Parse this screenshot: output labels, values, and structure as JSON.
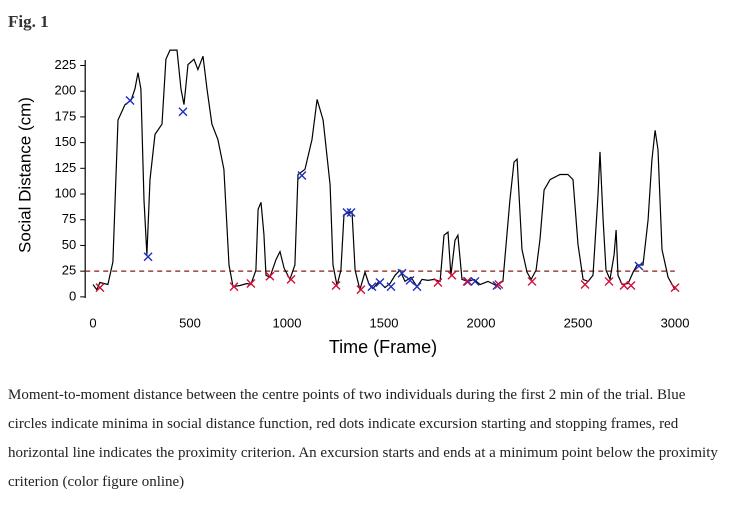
{
  "figure_label": "Fig. 1",
  "chart_data": {
    "type": "line",
    "xlabel": "Time (Frame)",
    "ylabel": "Social Distance (cm)",
    "xlim": [
      -40,
      3040
    ],
    "ylim": [
      -5,
      242
    ],
    "xticks": [
      0,
      500,
      1000,
      1500,
      2000,
      2500,
      3000
    ],
    "yticks": [
      0,
      25,
      50,
      75,
      100,
      125,
      150,
      175,
      200,
      225
    ],
    "threshold": 25,
    "threshold_color": "#8b1a1a",
    "series": [
      {
        "color": "#000000",
        "x": [
          0,
          20,
          36,
          77,
          103,
          129,
          165,
          196,
          216,
          232,
          247,
          263,
          278,
          294,
          320,
          356,
          376,
          397,
          433,
          454,
          469,
          490,
          521,
          541,
          567,
          588,
          613,
          644,
          675,
          701,
          722,
          758,
          794,
          814,
          840,
          851,
          866,
          881,
          892,
          912,
          943,
          964,
          985,
          1015,
          1041,
          1057,
          1093,
          1129,
          1155,
          1186,
          1222,
          1237,
          1258,
          1278,
          1294,
          1335,
          1351,
          1376,
          1402,
          1423,
          1443,
          1474,
          1505,
          1531,
          1557,
          1582,
          1608,
          1639,
          1670,
          1696,
          1727,
          1758,
          1789,
          1809,
          1830,
          1845,
          1866,
          1881,
          1902,
          1933,
          1964,
          1995,
          2036,
          2077,
          2113,
          2149,
          2170,
          2186,
          2211,
          2237,
          2258,
          2284,
          2304,
          2325,
          2356,
          2407,
          2448,
          2474,
          2500,
          2526,
          2552,
          2577,
          2603,
          2613,
          2629,
          2644,
          2665,
          2686,
          2696,
          2706,
          2727,
          2758,
          2784,
          2804,
          2835,
          2861,
          2881,
          2897,
          2912,
          2933,
          2964,
          3000
        ],
        "values": [
          12,
          7,
          14,
          12,
          34,
          172,
          187,
          191,
          202,
          218,
          202,
          94,
          41,
          114,
          158,
          168,
          231,
          240,
          240,
          202,
          187,
          226,
          231,
          221,
          234,
          202,
          168,
          153,
          124,
          31,
          10,
          11,
          13,
          12,
          26,
          85,
          92,
          61,
          21,
          19,
          36,
          44,
          28,
          17,
          31,
          119,
          124,
          153,
          192,
          172,
          109,
          31,
          11,
          26,
          80,
          83,
          26,
          7,
          24,
          12,
          8,
          15,
          9,
          13,
          21,
          26,
          15,
          19,
          10,
          17,
          16,
          17,
          15,
          60,
          63,
          21,
          55,
          60,
          17,
          15,
          17,
          12,
          15,
          11,
          15,
          94,
          131,
          134,
          46,
          24,
          17,
          26,
          56,
          104,
          114,
          119,
          119,
          114,
          51,
          17,
          15,
          21,
          99,
          141,
          75,
          26,
          17,
          41,
          65,
          21,
          12,
          13,
          24,
          31,
          31,
          75,
          133,
          162,
          143,
          46,
          19,
          7
        ]
      }
    ],
    "minima": {
      "color": "#1f2fbf",
      "x": [
        191,
        284,
        464,
        1077,
        1309,
        1330,
        1438,
        1479,
        1536,
        1593,
        1634,
        1670,
        1933,
        1969,
        2082,
        2814
      ],
      "values": [
        191,
        39,
        180,
        118,
        82,
        82,
        10,
        14,
        10,
        23,
        16,
        10,
        15,
        15,
        11,
        30
      ]
    },
    "excursions": {
      "color": "#d0103a",
      "x": [
        36,
        727,
        814,
        912,
        1021,
        1253,
        1381,
        1778,
        1850,
        1928,
        2092,
        2263,
        2536,
        2660,
        2737,
        2773,
        3000
      ],
      "values": [
        9,
        10,
        13,
        20,
        17,
        11,
        7,
        14,
        21,
        15,
        12,
        15,
        12,
        15,
        11,
        11,
        9
      ]
    }
  },
  "caption": "Moment-to-moment distance between the centre points of two individuals during the first 2 min of the trial. Blue circles indicate minima in social distance function, red dots indicate excursion starting and stopping frames, red horizontal line indicates the proximity criterion. An excursion starts and ends at a minimum point below the proximity criterion (color figure online)"
}
